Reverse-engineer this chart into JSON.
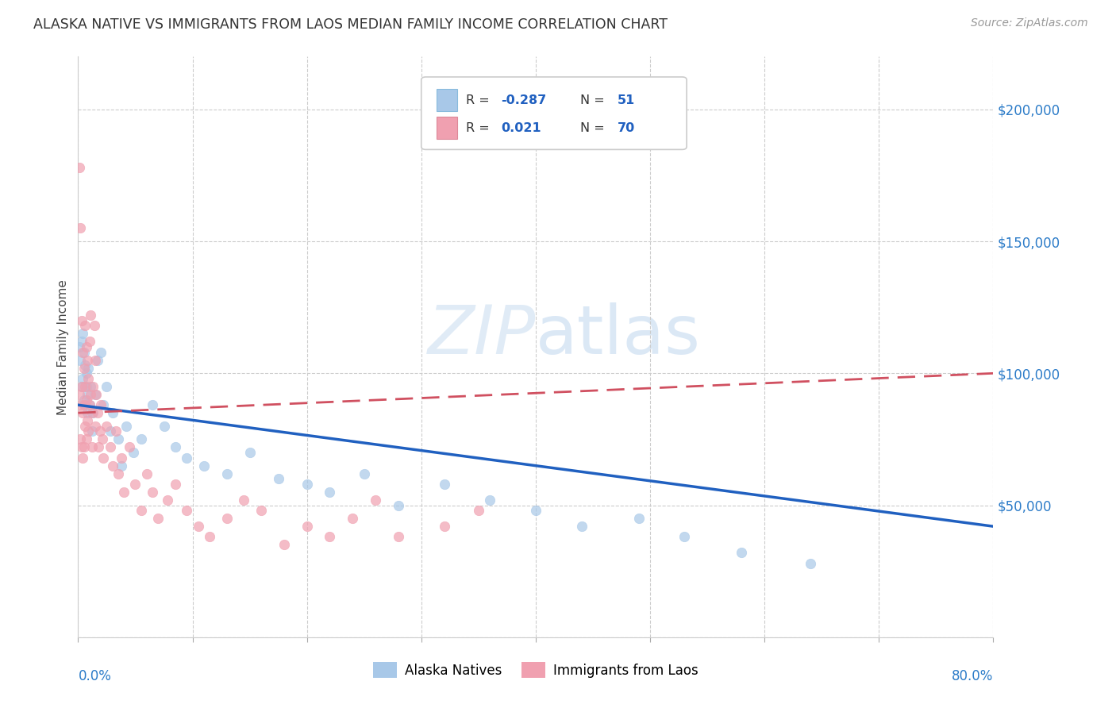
{
  "title": "ALASKA NATIVE VS IMMIGRANTS FROM LAOS MEDIAN FAMILY INCOME CORRELATION CHART",
  "source": "Source: ZipAtlas.com",
  "ylabel": "Median Family Income",
  "xmin": 0.0,
  "xmax": 0.8,
  "ymin": 0,
  "ymax": 220000,
  "yticks": [
    0,
    50000,
    100000,
    150000,
    200000
  ],
  "color_blue": "#A8C8E8",
  "color_pink": "#F0A0B0",
  "color_blue_line": "#2060C0",
  "color_pink_line": "#D05060",
  "background": "#FFFFFF",
  "grid_color": "#CCCCCC",
  "r_alaska": "-0.287",
  "n_alaska": "51",
  "r_laos": "0.021",
  "n_laos": "70",
  "alaska_x": [
    0.001,
    0.002,
    0.003,
    0.003,
    0.004,
    0.004,
    0.005,
    0.005,
    0.006,
    0.006,
    0.007,
    0.007,
    0.008,
    0.008,
    0.009,
    0.01,
    0.011,
    0.012,
    0.013,
    0.015,
    0.017,
    0.02,
    0.022,
    0.025,
    0.028,
    0.03,
    0.035,
    0.038,
    0.042,
    0.048,
    0.055,
    0.065,
    0.075,
    0.085,
    0.095,
    0.11,
    0.13,
    0.15,
    0.175,
    0.2,
    0.22,
    0.25,
    0.28,
    0.32,
    0.36,
    0.4,
    0.44,
    0.49,
    0.53,
    0.58,
    0.64
  ],
  "alaska_y": [
    110000,
    105000,
    112000,
    95000,
    115000,
    98000,
    108000,
    90000,
    103000,
    88000,
    100000,
    95000,
    92000,
    85000,
    102000,
    88000,
    95000,
    78000,
    85000,
    92000,
    105000,
    108000,
    88000,
    95000,
    78000,
    85000,
    75000,
    65000,
    80000,
    70000,
    75000,
    88000,
    80000,
    72000,
    68000,
    65000,
    62000,
    70000,
    60000,
    58000,
    55000,
    62000,
    50000,
    58000,
    52000,
    48000,
    42000,
    45000,
    38000,
    32000,
    28000
  ],
  "laos_x": [
    0.001,
    0.001,
    0.002,
    0.002,
    0.002,
    0.003,
    0.003,
    0.003,
    0.004,
    0.004,
    0.004,
    0.005,
    0.005,
    0.005,
    0.006,
    0.006,
    0.006,
    0.007,
    0.007,
    0.007,
    0.008,
    0.008,
    0.009,
    0.009,
    0.01,
    0.01,
    0.011,
    0.011,
    0.012,
    0.012,
    0.013,
    0.014,
    0.015,
    0.015,
    0.016,
    0.017,
    0.018,
    0.019,
    0.02,
    0.021,
    0.022,
    0.025,
    0.028,
    0.03,
    0.033,
    0.035,
    0.038,
    0.04,
    0.045,
    0.05,
    0.055,
    0.06,
    0.065,
    0.07,
    0.078,
    0.085,
    0.095,
    0.105,
    0.115,
    0.13,
    0.145,
    0.16,
    0.18,
    0.2,
    0.22,
    0.24,
    0.26,
    0.28,
    0.32,
    0.35
  ],
  "laos_y": [
    178000,
    92000,
    155000,
    88000,
    75000,
    120000,
    95000,
    72000,
    108000,
    85000,
    68000,
    102000,
    88000,
    72000,
    118000,
    95000,
    80000,
    110000,
    90000,
    75000,
    105000,
    82000,
    98000,
    78000,
    112000,
    88000,
    122000,
    92000,
    85000,
    72000,
    95000,
    118000,
    105000,
    80000,
    92000,
    85000,
    72000,
    78000,
    88000,
    75000,
    68000,
    80000,
    72000,
    65000,
    78000,
    62000,
    68000,
    55000,
    72000,
    58000,
    48000,
    62000,
    55000,
    45000,
    52000,
    58000,
    48000,
    42000,
    38000,
    45000,
    52000,
    48000,
    35000,
    42000,
    38000,
    45000,
    52000,
    38000,
    42000,
    48000
  ]
}
